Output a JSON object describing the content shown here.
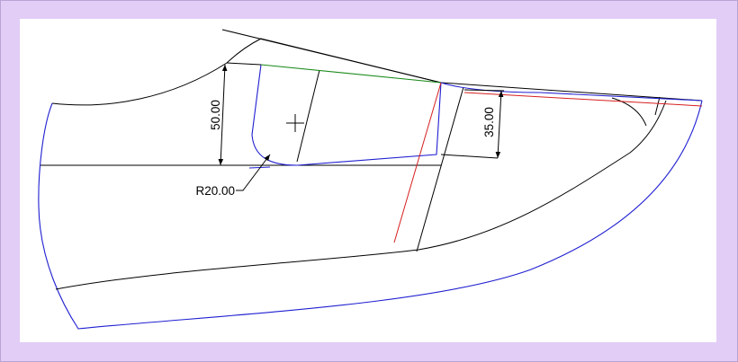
{
  "dimensions": {
    "height_50": "50.00",
    "height_35": "35.00",
    "radius": "R20.00"
  },
  "colors": {
    "background": "#e2cdf7",
    "canvas": "#ffffff",
    "outline": "#000000",
    "blue_contour": "#1f1fd1",
    "red_line": "#d61f1f",
    "green_line": "#1a8a1a"
  }
}
